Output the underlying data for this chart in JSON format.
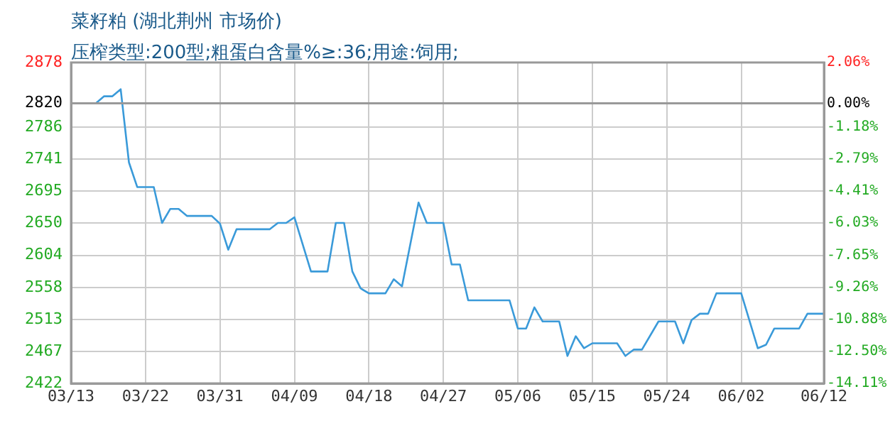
{
  "chart_data": {
    "type": "line",
    "title": "菜籽粕 (湖北荆州 市场价)",
    "subtitle": "压榨类型:200型;粗蛋白含量%≥:36;用途:饲用;",
    "x": [
      "--03-13",
      "--03-16",
      "--03-17",
      "--03-18",
      "--03-19",
      "--03-20",
      "--03-21",
      "--03-23",
      "--03-24",
      "--03-25",
      "--03-26",
      "--03-27",
      "--03-30",
      "--03-31",
      "--04-01",
      "--04-02",
      "--04-06",
      "--04-07",
      "--04-08",
      "--04-09",
      "--04-11",
      "--04-13",
      "--04-14",
      "--04-15",
      "--04-16",
      "--04-17",
      "--04-18",
      "--04-20",
      "--04-21",
      "--04-22",
      "--04-24",
      "--04-25",
      "--04-27",
      "--04-28",
      "--04-29",
      "--04-30",
      "--05-05",
      "--05-06",
      "--05-07",
      "--05-08",
      "--05-09",
      "--05-11",
      "--05-12",
      "--05-13",
      "--05-14",
      "--05-15",
      "--05-18",
      "--05-19",
      "--05-20",
      "--05-21",
      "--05-23",
      "--05-25",
      "--05-26",
      "--05-27",
      "--05-28",
      "--05-29",
      "--05-30",
      "--06-02",
      "--06-04",
      "--06-05",
      "--06-06",
      "--06-09",
      "--06-10",
      "--06-12"
    ],
    "series": [
      {
        "color": "#3a9ad9",
        "values": [
          2820,
          2820,
          2830,
          2830,
          2840,
          2736,
          2701,
          2701,
          2650,
          2670,
          2670,
          2660,
          2660,
          2649,
          2612,
          2641,
          2641,
          2650,
          2650,
          2658,
          2581,
          2581,
          2650,
          2650,
          2581,
          2557,
          2550,
          2550,
          2570,
          2560,
          2679,
          2650,
          2650,
          2591,
          2591,
          2540,
          2540,
          2500,
          2500,
          2530,
          2510,
          2510,
          2461,
          2489,
          2472,
          2479,
          2479,
          2461,
          2470,
          2470,
          2510,
          2510,
          2479,
          2512,
          2521,
          2521,
          2550,
          2550,
          2472,
          2477,
          2500,
          2500,
          2521,
          2521
        ]
      }
    ],
    "xlim": [
      "--03-13",
      "--06-12"
    ],
    "xticks": [
      {
        "value": "--03-13",
        "label": "03/13"
      },
      {
        "value": "--03-22",
        "label": "03/22"
      },
      {
        "value": "--03-31",
        "label": "03/31"
      },
      {
        "value": "--04-09",
        "label": "04/09"
      },
      {
        "value": "--04-18",
        "label": "04/18"
      },
      {
        "value": "--04-27",
        "label": "04/27"
      },
      {
        "value": "--05-06",
        "label": "05/06"
      },
      {
        "value": "--05-15",
        "label": "05/15"
      },
      {
        "value": "--05-24",
        "label": "05/24"
      },
      {
        "value": "--06-02",
        "label": "06/02"
      },
      {
        "value": "--06-12",
        "label": "06/12"
      }
    ],
    "ylim": [
      2422,
      2878
    ],
    "yticks": [
      2878,
      2820,
      2786,
      2741,
      2695,
      2650,
      2604,
      2558,
      2513,
      2467,
      2422
    ],
    "y2lim": [
      -14.11,
      2.06
    ],
    "y2ticks": [
      {
        "value": 2.06,
        "label": "2.06%"
      },
      {
        "value": 0,
        "label": "0.00%"
      },
      {
        "value": -1.18,
        "label": "-1.18%"
      },
      {
        "value": -2.79,
        "label": "-2.79%"
      },
      {
        "value": -4.41,
        "label": "-4.41%"
      },
      {
        "value": -6.03,
        "label": "-6.03%"
      },
      {
        "value": -7.65,
        "label": "-7.65%"
      },
      {
        "value": -9.26,
        "label": "-9.26%"
      },
      {
        "value": -10.88,
        "label": "-10.88%"
      },
      {
        "value": -12.5,
        "label": "-12.50%"
      },
      {
        "value": -14.11,
        "label": "-14.11%"
      }
    ],
    "ref_lines": [
      {
        "axis": "y",
        "value": 2820,
        "color": "#999999"
      }
    ],
    "grid": true,
    "legend": false,
    "marker": "none",
    "line_style": "solid"
  }
}
